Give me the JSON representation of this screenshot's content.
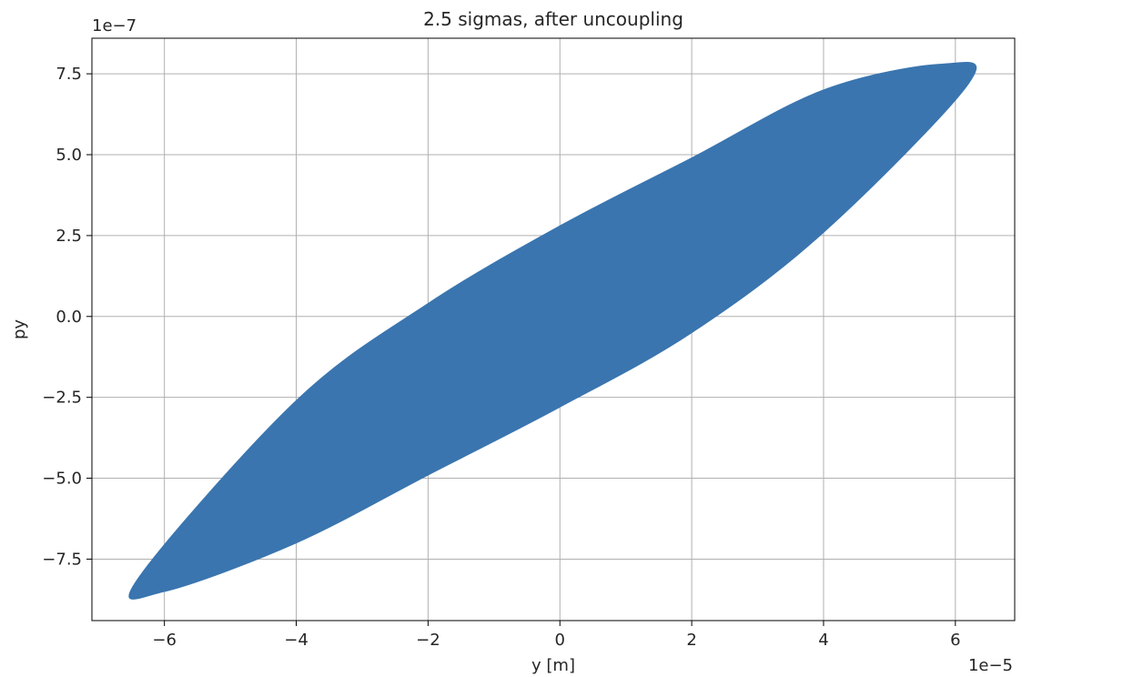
{
  "chart_data": {
    "type": "scatter",
    "title": "2.5 sigmas, after uncoupling",
    "xlabel": "y [m]",
    "ylabel": "py",
    "x_offset_text": "1e−5",
    "y_offset_text": "1e−7",
    "x_scale": 1e-05,
    "y_scale": 1e-07,
    "xlim": [
      -7.1e-05,
      6.9e-05
    ],
    "ylim": [
      -9.4e-07,
      8.6e-07
    ],
    "x_ticks": [
      {
        "value": -6e-05,
        "label": "−6"
      },
      {
        "value": -4e-05,
        "label": "−4"
      },
      {
        "value": -2e-05,
        "label": "−2"
      },
      {
        "value": 0,
        "label": "0"
      },
      {
        "value": 2e-05,
        "label": "2"
      },
      {
        "value": 4e-05,
        "label": "4"
      },
      {
        "value": 6e-05,
        "label": "6"
      }
    ],
    "y_ticks": [
      {
        "value": -7.5e-07,
        "label": "−7.5"
      },
      {
        "value": -5e-07,
        "label": "−5.0"
      },
      {
        "value": -2.5e-07,
        "label": "−2.5"
      },
      {
        "value": 0,
        "label": "0.0"
      },
      {
        "value": 2.5e-07,
        "label": "2.5"
      },
      {
        "value": 5e-07,
        "label": "5.0"
      },
      {
        "value": 7.5e-07,
        "label": "7.5"
      }
    ],
    "grid": true,
    "series": [
      {
        "color": "#3a75af",
        "shape": "filled ellipse",
        "center": [
          0.0,
          0.0
        ],
        "extreme_points": [
          [
            6.2e-05,
            7.2e-07
          ],
          [
            -6.4e-05,
            -8.1e-07
          ]
        ],
        "top_point": [
          5.8e-05,
          7.8e-07
        ],
        "bottom_point": [
          -6e-05,
          -8.5e-07
        ],
        "y_intercepts": [
          2.8e-07,
          -2.8e-07
        ],
        "boundary": [
          [
            -6.4e-05,
            -8.1e-07
          ],
          [
            -6e-05,
            -8.5e-07
          ],
          [
            -4e-05,
            -7e-07
          ],
          [
            -2e-05,
            -4.9e-07
          ],
          [
            0.0,
            -2.8e-07
          ],
          [
            2e-05,
            -5e-08
          ],
          [
            4e-05,
            2.6e-07
          ],
          [
            6.2e-05,
            7.2e-07
          ],
          [
            5.8e-05,
            7.8e-07
          ],
          [
            4e-05,
            7e-07
          ],
          [
            2e-05,
            4.9e-07
          ],
          [
            0.0,
            2.8e-07
          ],
          [
            -2e-05,
            4e-08
          ],
          [
            -4e-05,
            -2.6e-07
          ]
        ]
      }
    ]
  }
}
